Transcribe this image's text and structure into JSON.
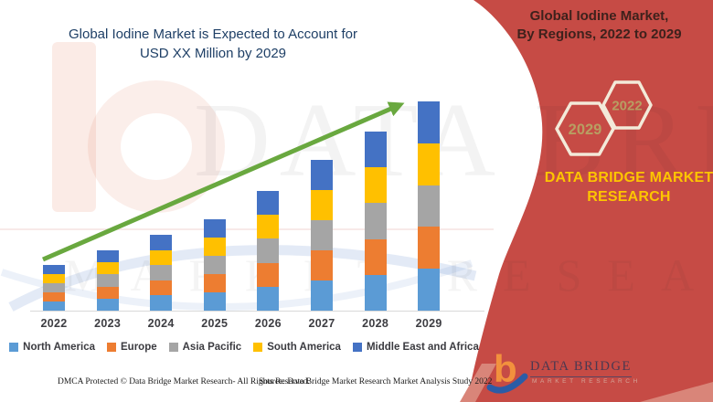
{
  "colors": {
    "panel_red": "#C64B45",
    "panel_red_light": "#D98579",
    "arrow_green": "#69A83F",
    "title_navy": "#1E3F66",
    "brand_yellow": "#FDC500",
    "hexagon_outline": "#F3EAD9",
    "hexagon_text": "#B89E62",
    "axis_line": "#D9D9D9",
    "heading_dark": "#3E211C"
  },
  "left_panel": {
    "title_line1": "Global Iodine Market is Expected to Account for",
    "title_line2": "USD XX Million by 2029",
    "footer_left": "DMCA Protected © Data Bridge Market Research- All Rights Reserved.",
    "footer_source": "Source: Data Bridge Market Research Market Analysis Study 2022"
  },
  "right_panel": {
    "heading_line1": "Global Iodine Market,",
    "heading_line2": "By Regions, 2022 to 2029",
    "hexagon_back_label": "2022",
    "hexagon_front_label": "2029",
    "brand_line1": "DATA BRIDGE MARKET",
    "brand_line2": "RESEARCH",
    "logo": {
      "glyph": "b",
      "name": "DATA BRIDGE",
      "subtitle": "MARKET RESEARCH"
    }
  },
  "watermark": {
    "row1": "DATA BRIDGE",
    "row2": "MARKET RESEARCH"
  },
  "chart_data": {
    "type": "bar",
    "stacked": true,
    "title": "Global Iodine Market is Expected to Account for USD XX Million by 2029",
    "xlabel": "",
    "ylabel": "",
    "units": "USD Million (values masked as XX in source)",
    "categories": [
      "2022",
      "2023",
      "2024",
      "2025",
      "2026",
      "2027",
      "2028",
      "2029"
    ],
    "series": [
      {
        "name": "North America",
        "color": "#5B9BD5",
        "values": [
          10,
          13.2,
          16.6,
          20,
          26.2,
          33,
          39.2,
          45.8
        ]
      },
      {
        "name": "Europe",
        "color": "#ED7D31",
        "values": [
          10,
          13.2,
          16.6,
          20,
          26.2,
          33,
          39.2,
          45.8
        ]
      },
      {
        "name": "Asia Pacific",
        "color": "#A5A5A5",
        "values": [
          10,
          13.2,
          16.6,
          20,
          26.2,
          33,
          39.2,
          45.8
        ]
      },
      {
        "name": "South America",
        "color": "#FFC000",
        "values": [
          10,
          13.2,
          16.6,
          20,
          26.2,
          33,
          39.2,
          45.8
        ]
      },
      {
        "name": "Middle East and Africa",
        "color": "#4472C4",
        "values": [
          10,
          13.2,
          16.6,
          20,
          26.2,
          33,
          39.2,
          45.8
        ]
      }
    ],
    "stack_totals": [
      50,
      66,
      83,
      100,
      131,
      165,
      196,
      229
    ],
    "legend_position": "bottom",
    "grid": false,
    "y_axis_shown": false,
    "trend_arrow": {
      "present": true,
      "color": "#69A83F",
      "direction": "up-right"
    }
  }
}
